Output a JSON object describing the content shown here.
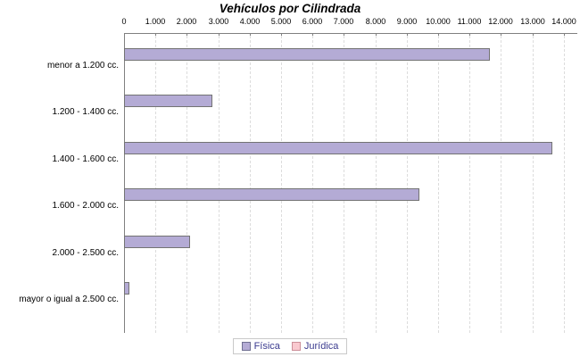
{
  "title": "Vehículos por Cilindrada",
  "chart_data": {
    "type": "bar",
    "orientation": "horizontal",
    "title": "Vehículos por Cilindrada",
    "categories": [
      "menor a 1.200 cc.",
      "1.200 - 1.400 cc.",
      "1.400 - 1.600 cc.",
      "1.600 - 2.000 cc.",
      "2.000 - 2.500 cc.",
      "mayor o igual a 2.500 cc."
    ],
    "series": [
      {
        "name": "Física",
        "fill_color": "#b4abd5",
        "border_color": "#737373",
        "legend_swatch_border": "#6f6f92",
        "values": [
          11650,
          2800,
          13650,
          9400,
          2100,
          170
        ]
      },
      {
        "name": "Jurídica",
        "fill_color": "#f9c9cf",
        "border_color": "#cc8f99",
        "legend_swatch_border": "#cc8f99",
        "values": [
          0,
          0,
          0,
          0,
          0,
          0
        ]
      }
    ],
    "x_axis": {
      "position": "top",
      "min": 0,
      "max": 14000,
      "tick_interval": 1000,
      "tick_labels": [
        "0",
        "1.000",
        "2.000",
        "3.000",
        "4.000",
        "5.000",
        "6.000",
        "7.000",
        "8.000",
        "9.000",
        "10.000",
        "11.000",
        "12.000",
        "13.000",
        "14.000"
      ]
    },
    "grid": "vertical-dashed",
    "legend_position": "bottom",
    "colors": {
      "axis": "#808080",
      "gridline": "#dcdcdc",
      "legend_text": "#3b3b8f",
      "legend_border": "#c9c9c9",
      "background": "#ffffff"
    }
  }
}
